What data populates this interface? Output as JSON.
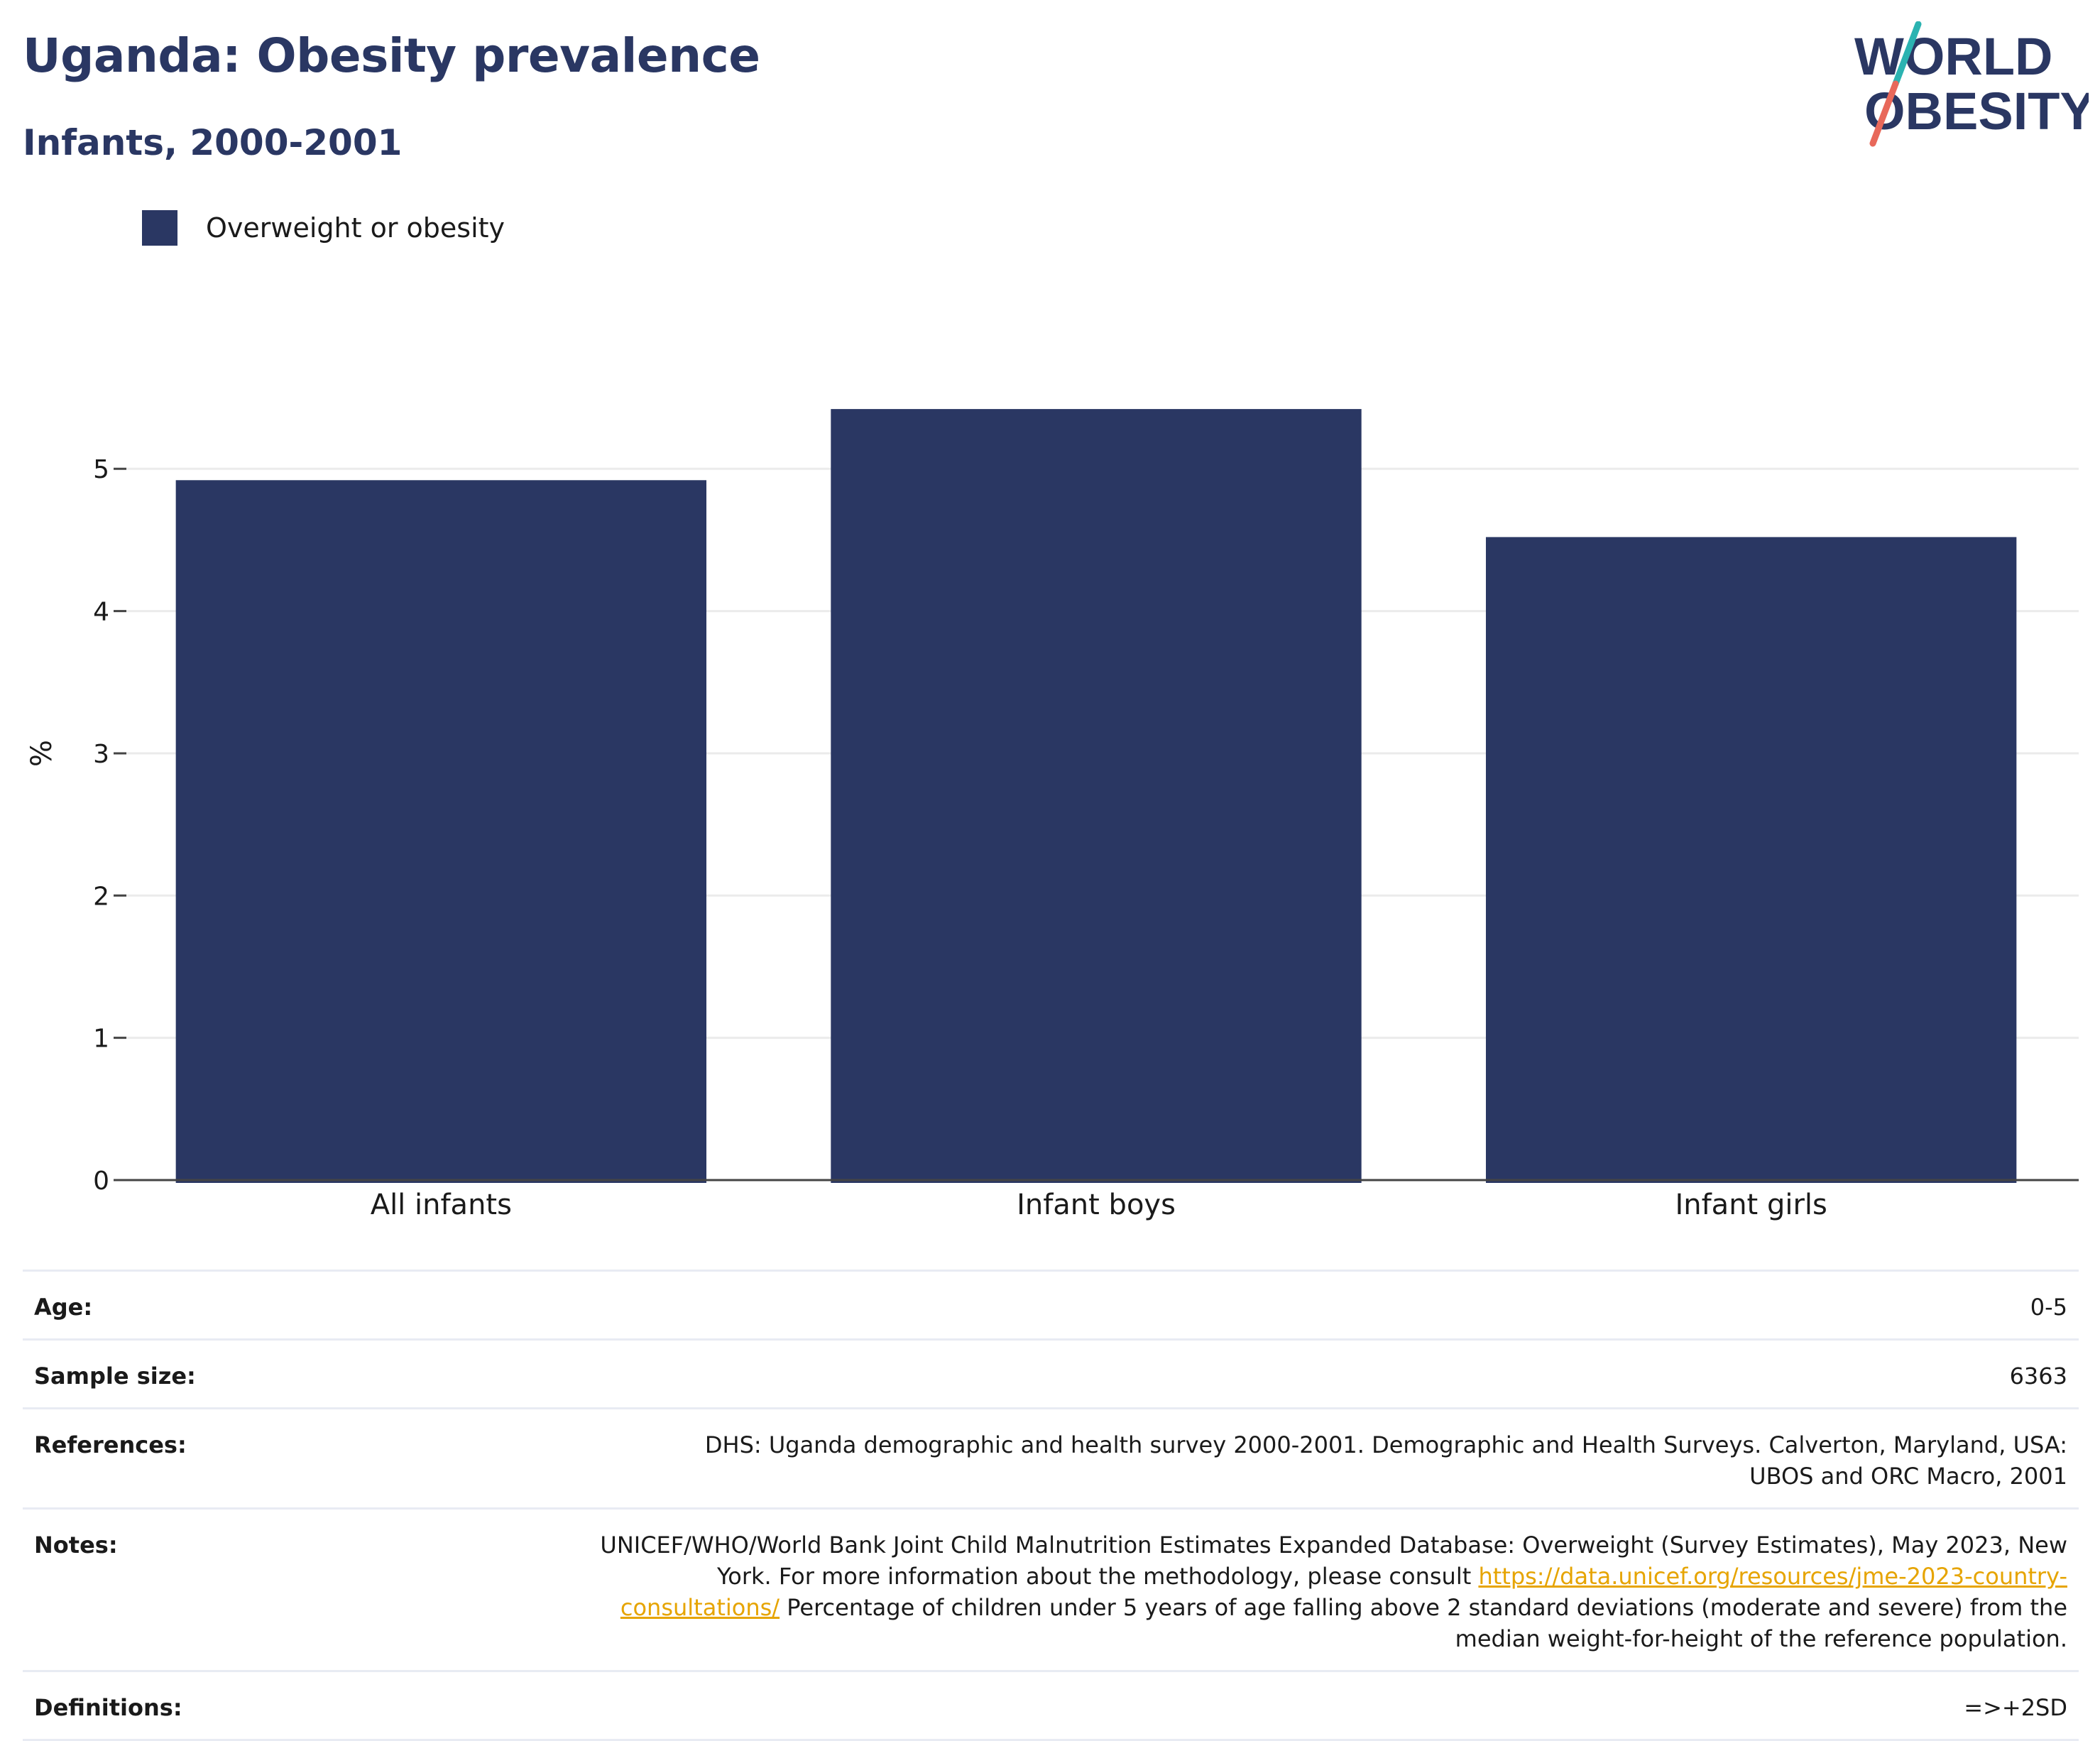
{
  "header": {
    "title": "Uganda: Obesity prevalence",
    "subtitle": "Infants, 2000-2001"
  },
  "logo": {
    "line1": "WORLD",
    "line2": "OBESITY",
    "colors": {
      "text": "#2a3763",
      "slash_top": "#2bb3b1",
      "slash_bottom": "#e8685a"
    }
  },
  "legend": {
    "items": [
      {
        "label": "Overweight or obesity",
        "color": "#2a3763"
      }
    ]
  },
  "chart_data": {
    "type": "bar",
    "categories": [
      "All infants",
      "Infant boys",
      "Infant girls"
    ],
    "series": [
      {
        "name": "Overweight or obesity",
        "values": [
          4.92,
          5.42,
          4.52
        ],
        "color": "#2a3763"
      }
    ],
    "ylabel": "%",
    "xlabel": "",
    "ylim": [
      0,
      5.7
    ],
    "yticks": [
      0,
      1,
      2,
      3,
      4,
      5
    ],
    "grid": true
  },
  "info": {
    "age": {
      "label": "Age:",
      "value": "0-5"
    },
    "sample_size": {
      "label": "Sample size:",
      "value": "6363"
    },
    "references": {
      "label": "References:",
      "value": "DHS: Uganda demographic and health survey 2000-2001. Demographic and Health Surveys. Calverton, Maryland, USA: UBOS and ORC Macro, 2001"
    },
    "notes": {
      "label": "Notes:",
      "text_before": "UNICEF/WHO/World Bank Joint Child Malnutrition Estimates Expanded Database: Overweight (Survey Estimates), May 2023, New York. For more information about the methodology, please consult ",
      "link": "https://data.unicef.org/resources/jme-2023-country-consultations/",
      "text_after": " Percentage of children under 5 years of age falling above 2 standard deviations (moderate and severe) from the median weight-for-height of the reference population."
    },
    "definitions": {
      "label": "Definitions:",
      "value": "=>+2SD"
    }
  }
}
